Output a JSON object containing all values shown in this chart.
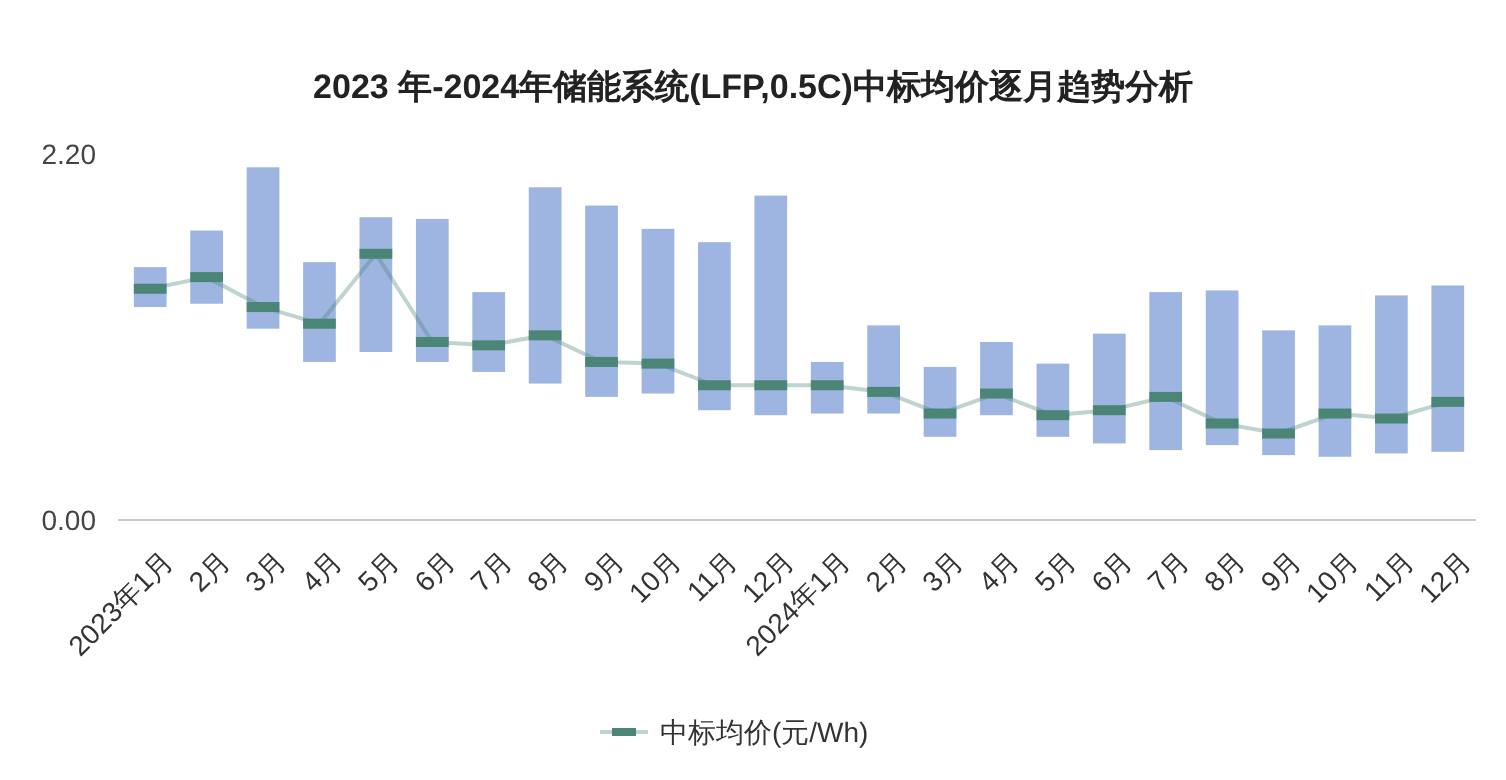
{
  "chart_data": {
    "type": "bar",
    "title": "2023 年-2024年储能系统(LFP,0.5C)中标均价逐月趋势分析",
    "categories": [
      "2023年1月",
      "2月",
      "3月",
      "4月",
      "5月",
      "6月",
      "7月",
      "8月",
      "9月",
      "10月",
      "11月",
      "12月",
      "2024年1月",
      "2月",
      "3月",
      "4月",
      "5月",
      "6月",
      "7月",
      "8月",
      "9月",
      "10月",
      "11月",
      "12月"
    ],
    "series": [
      {
        "color": "#9eb5e2",
        "base": [
          1.28,
          1.3,
          1.15,
          0.95,
          1.01,
          0.95,
          0.89,
          0.82,
          0.74,
          0.76,
          0.66,
          0.63,
          0.64,
          0.64,
          0.5,
          0.63,
          0.5,
          0.46,
          0.42,
          0.45,
          0.39,
          0.38,
          0.4,
          0.41
        ],
        "values": [
          0.24,
          0.44,
          0.97,
          0.6,
          0.81,
          0.86,
          0.48,
          1.18,
          1.15,
          0.99,
          1.01,
          1.32,
          0.31,
          0.53,
          0.42,
          0.44,
          0.44,
          0.66,
          0.95,
          0.93,
          0.75,
          0.79,
          0.95,
          1.0
        ]
      },
      {
        "type": "line",
        "name": "中标均价(元/Wh)",
        "color": "#4a8575",
        "values": [
          1.39,
          1.46,
          1.28,
          1.18,
          1.6,
          1.07,
          1.05,
          1.11,
          0.95,
          0.94,
          0.81,
          0.81,
          0.81,
          0.77,
          0.64,
          0.76,
          0.63,
          0.66,
          0.74,
          0.58,
          0.52,
          0.64,
          0.61,
          0.71
        ]
      }
    ],
    "ylim": [
      0,
      2.2
    ],
    "yticks": [
      {
        "value": 0,
        "label": "0.00"
      },
      {
        "value": 2.2,
        "label": "2.20"
      }
    ],
    "marker": "square",
    "legend": "bottom"
  }
}
